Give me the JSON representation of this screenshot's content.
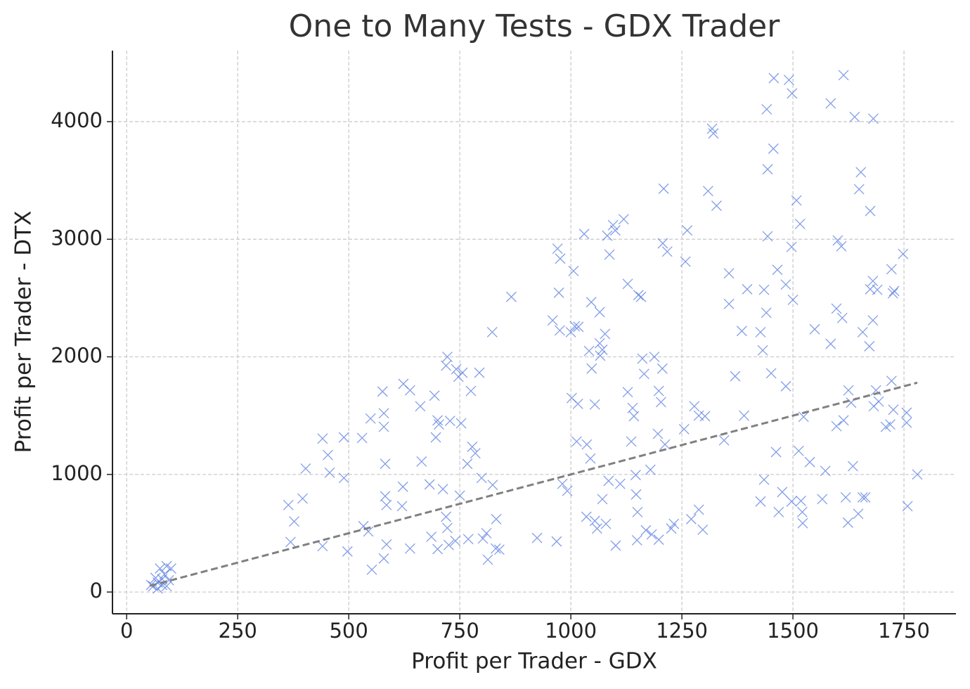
{
  "chart_data": {
    "type": "scatter",
    "title": "One to Many Tests - GDX Trader",
    "xlabel": "Profit per Trader - GDX",
    "ylabel": "Profit per Trader - DTX",
    "marker": "x",
    "color": "#5b7fe0",
    "grid": true,
    "xlim": [
      -32,
      1867
    ],
    "ylim": [
      -185,
      4604
    ],
    "xticks": [
      0,
      250,
      500,
      750,
      1000,
      1250,
      1500,
      1750
    ],
    "yticks": [
      0,
      1000,
      2000,
      3000,
      4000
    ],
    "x": [
      60,
      65,
      70,
      75,
      80,
      85,
      90,
      95,
      100,
      70,
      80,
      55,
      90,
      364,
      377,
      369,
      396,
      403,
      441,
      453,
      457,
      441,
      489,
      489,
      497,
      530,
      533,
      549,
      552,
      544,
      576,
      579,
      579,
      582,
      582,
      585,
      585,
      579,
      620,
      622,
      623,
      638,
      638,
      661,
      664,
      682,
      686,
      693,
      700,
      703,
      696,
      700,
      712,
      719,
      722,
      719,
      722,
      725,
      728,
      742,
      747,
      756,
      753,
      750,
      740,
      767,
      769,
      775,
      778,
      785,
      794,
      799,
      802,
      810,
      813,
      823,
      824,
      831,
      832,
      839,
      866,
      924,
      959,
      968,
      973,
      970,
      976,
      975,
      981,
      992,
      1002,
      1000,
      1006,
      1009,
      1013,
      1017,
      1016,
      1030,
      1035,
      1036,
      1041,
      1044,
      1046,
      1047,
      1054,
      1054,
      1059,
      1065,
      1065,
      1066,
      1071,
      1071,
      1077,
      1079,
      1082,
      1085,
      1087,
      1095,
      1100,
      1101,
      1111,
      1119,
      1128,
      1128,
      1136,
      1139,
      1142,
      1146,
      1149,
      1147,
      1150,
      1152,
      1158,
      1161,
      1165,
      1169,
      1179,
      1182,
      1188,
      1196,
      1198,
      1198,
      1203,
      1206,
      1209,
      1207,
      1212,
      1217,
      1226,
      1232,
      1255,
      1258,
      1262,
      1271,
      1278,
      1288,
      1288,
      1297,
      1302,
      1309,
      1318,
      1321,
      1328,
      1345,
      1356,
      1356,
      1370,
      1385,
      1390,
      1397,
      1427,
      1427,
      1432,
      1435,
      1435,
      1441,
      1443,
      1443,
      1440,
      1451,
      1456,
      1457,
      1462,
      1465,
      1468,
      1476,
      1484,
      1484,
      1491,
      1498,
      1497,
      1500,
      1497,
      1508,
      1513,
      1516,
      1518,
      1521,
      1522,
      1524,
      1538,
      1549,
      1566,
      1573,
      1585,
      1585,
      1598,
      1598,
      1601,
      1609,
      1611,
      1614,
      1614,
      1619,
      1624,
      1625,
      1631,
      1635,
      1639,
      1647,
      1649,
      1653,
      1657,
      1657,
      1663,
      1672,
      1674,
      1674,
      1680,
      1681,
      1680,
      1682,
      1687,
      1690,
      1693,
      1709,
      1719,
      1722,
      1722,
      1726,
      1725,
      1728,
      1748,
      1756,
      1756,
      1758,
      1780
    ],
    "y": [
      50,
      120,
      80,
      200,
      60,
      150,
      220,
      100,
      200,
      30,
      110,
      60,
      50,
      740,
      600,
      425,
      795,
      1050,
      1305,
      1165,
      1015,
      390,
      1315,
      970,
      345,
      1310,
      560,
      1475,
      190,
      515,
      1705,
      1520,
      1405,
      1090,
      815,
      740,
      405,
      285,
      730,
      895,
      1770,
      1715,
      370,
      1580,
      1110,
      915,
      470,
      1670,
      1460,
      1425,
      1315,
      365,
      875,
      1925,
      2000,
      640,
      545,
      400,
      1455,
      1895,
      1830,
      1865,
      1435,
      820,
      435,
      1090,
      450,
      1710,
      1235,
      1180,
      1865,
      970,
      455,
      500,
      275,
      2210,
      910,
      370,
      620,
      360,
      2510,
      460,
      2310,
      430,
      2545,
      2920,
      2835,
      2225,
      920,
      860,
      1650,
      2210,
      2730,
      2260,
      1280,
      2255,
      1600,
      3045,
      640,
      1255,
      2050,
      1135,
      2465,
      1900,
      1595,
      605,
      540,
      2115,
      2380,
      2010,
      790,
      2060,
      2195,
      580,
      3030,
      945,
      2870,
      3120,
      3075,
      395,
      920,
      3170,
      2620,
      1700,
      1280,
      1565,
      1495,
      995,
      440,
      830,
      680,
      2525,
      2510,
      1985,
      1855,
      525,
      1040,
      490,
      2000,
      1345,
      1710,
      445,
      1615,
      1900,
      3430,
      2965,
      1255,
      2895,
      540,
      580,
      1385,
      2810,
      3075,
      620,
      1580,
      1500,
      700,
      530,
      1495,
      3410,
      3940,
      3900,
      3285,
      1290,
      2710,
      2450,
      1835,
      2220,
      1500,
      2575,
      770,
      2210,
      2055,
      955,
      2570,
      4105,
      3595,
      3025,
      2375,
      1860,
      3770,
      4370,
      1190,
      2740,
      680,
      850,
      1750,
      2615,
      4355,
      4240,
      2935,
      2485,
      770,
      3330,
      1200,
      3130,
      775,
      680,
      585,
      1490,
      1105,
      2235,
      790,
      1030,
      2110,
      4155,
      1410,
      2410,
      2990,
      2940,
      2330,
      4395,
      1460,
      805,
      590,
      1715,
      1610,
      1070,
      4040,
      665,
      3425,
      3570,
      2210,
      805,
      805,
      2090,
      3240,
      2575,
      2310,
      4025,
      2645,
      1580,
      1715,
      2570,
      1620,
      1405,
      1425,
      1795,
      2745,
      1550,
      2540,
      2560,
      2875,
      1525,
      1440,
      730,
      1000
    ],
    "trend_line": {
      "x": [
        52,
        1780
      ],
      "y": [
        52,
        1780
      ],
      "color": "#808080",
      "style": "dashed"
    }
  }
}
